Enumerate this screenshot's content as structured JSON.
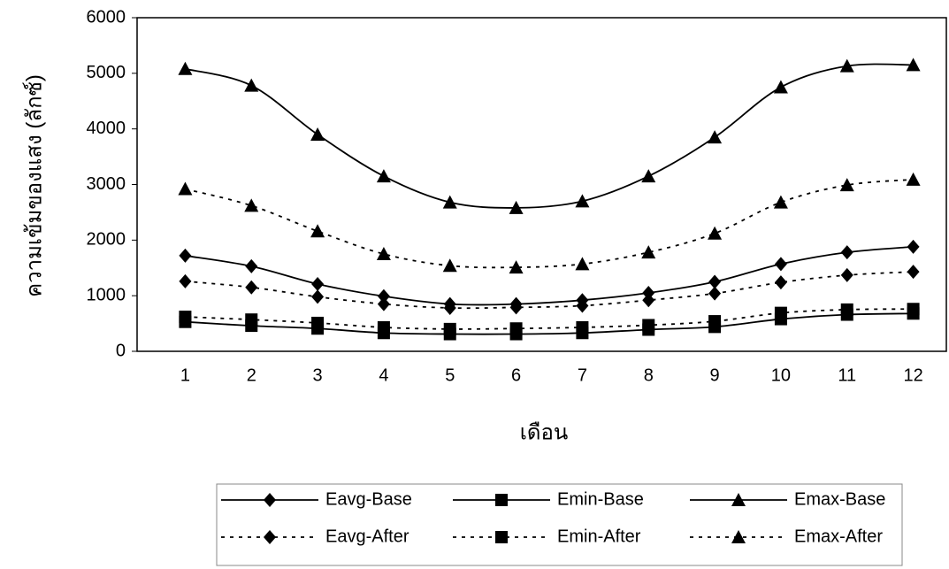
{
  "chart_data": {
    "type": "line",
    "x_label": "เดือน",
    "y_label": "ความเข้มของแสง (ลักซ์)",
    "categories": [
      1,
      2,
      3,
      4,
      5,
      6,
      7,
      8,
      9,
      10,
      11,
      12
    ],
    "ylim": [
      0,
      6000
    ],
    "yticks": [
      0,
      1000,
      2000,
      3000,
      4000,
      5000,
      6000
    ],
    "grid": false,
    "legend": "bottom",
    "smooth": true,
    "series": [
      {
        "name": "Eavg-Base",
        "color": "#000000",
        "marker": "diamond",
        "dash": "solid",
        "values": [
          1720,
          1530,
          1210,
          990,
          850,
          850,
          920,
          1050,
          1250,
          1570,
          1780,
          1880
        ]
      },
      {
        "name": "Emin-Base",
        "color": "#000000",
        "marker": "square",
        "dash": "solid",
        "values": [
          530,
          460,
          410,
          330,
          310,
          310,
          330,
          390,
          440,
          580,
          660,
          680
        ]
      },
      {
        "name": "Emax-Base",
        "color": "#000000",
        "marker": "triangle",
        "dash": "solid",
        "values": [
          5080,
          4780,
          3900,
          3150,
          2680,
          2580,
          2700,
          3150,
          3850,
          4750,
          5130,
          5150
        ]
      },
      {
        "name": "Eavg-After",
        "color": "#000000",
        "marker": "diamond",
        "dash": "dashed",
        "values": [
          1260,
          1150,
          980,
          850,
          780,
          790,
          820,
          920,
          1040,
          1240,
          1370,
          1430
        ]
      },
      {
        "name": "Emin-After",
        "color": "#000000",
        "marker": "square",
        "dash": "dashed",
        "values": [
          620,
          570,
          510,
          430,
          400,
          410,
          430,
          470,
          540,
          690,
          750,
          760
        ]
      },
      {
        "name": "Emax-After",
        "color": "#000000",
        "marker": "triangle",
        "dash": "dashed",
        "values": [
          2920,
          2620,
          2160,
          1750,
          1540,
          1510,
          1570,
          1780,
          2120,
          2680,
          2990,
          3090
        ]
      }
    ]
  }
}
